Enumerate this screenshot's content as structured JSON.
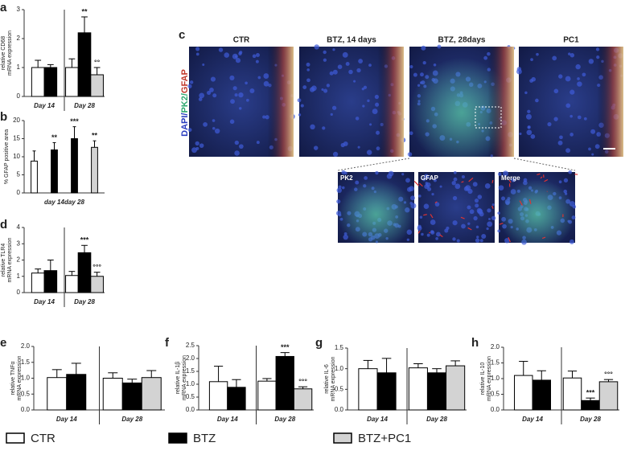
{
  "legend": [
    {
      "name": "CTR",
      "color": "#ffffff"
    },
    {
      "name": "BTZ",
      "color": "#000000"
    },
    {
      "name": "BTZ+PC1",
      "color": "#d3d3d3"
    }
  ],
  "panel_c": {
    "letter": "c",
    "stain_label": [
      "DAPI/",
      "PK2/",
      "GFAP"
    ],
    "columns": [
      "CTR",
      "BTZ, 14 days",
      "BTZ, 28days",
      "PC1"
    ],
    "zoom": [
      "PK2",
      "GFAP",
      "Merge"
    ]
  },
  "chart_data": [
    {
      "type": "bar",
      "panel": "a",
      "ylabel": [
        "relative CD68",
        "mRNA expression"
      ],
      "categories": [
        "Day 14",
        "Day 28"
      ],
      "group_divider": true,
      "ylim": [
        0,
        3
      ],
      "yticks": [
        0,
        1,
        2,
        3
      ],
      "series": [
        {
          "values": [
            1.0,
            1.0
          ],
          "errors": [
            0.25,
            0.3
          ],
          "labels": [
            null,
            null
          ]
        },
        {
          "values": [
            1.0,
            2.2
          ],
          "errors": [
            0.1,
            0.55
          ],
          "labels": [
            null,
            "**"
          ]
        },
        {
          "values": [
            null,
            0.75
          ],
          "errors": [
            null,
            0.25
          ],
          "labels": [
            null,
            "°°"
          ]
        }
      ]
    },
    {
      "type": "bar",
      "panel": "b",
      "ylabel": [
        "% GFAP positive area"
      ],
      "categories": [
        null,
        "day 14",
        "day 28",
        null
      ],
      "group_divider": false,
      "ylim": [
        0,
        20
      ],
      "yticks": [
        0,
        5,
        10,
        15,
        20
      ],
      "series": [
        {
          "values": [
            8.8,
            null,
            null,
            null
          ],
          "errors": [
            2.8,
            null,
            null,
            null
          ],
          "labels": [
            null,
            null,
            null,
            null
          ]
        },
        {
          "values": [
            null,
            11.9,
            15,
            null
          ],
          "errors": [
            null,
            2,
            3.3,
            null
          ],
          "labels": [
            null,
            "**",
            "***",
            null
          ]
        },
        {
          "values": [
            null,
            null,
            null,
            12.6
          ],
          "errors": [
            null,
            null,
            null,
            1.8
          ],
          "labels": [
            null,
            null,
            null,
            "**"
          ]
        }
      ]
    },
    {
      "type": "bar",
      "panel": "d",
      "ylabel": [
        "relative TLR4",
        "mRNA expression"
      ],
      "categories": [
        "Day 14",
        "Day 28"
      ],
      "group_divider": true,
      "ylim": [
        0,
        4
      ],
      "yticks": [
        0,
        1,
        2,
        3,
        4
      ],
      "series": [
        {
          "values": [
            1.2,
            1.05
          ],
          "errors": [
            0.25,
            0.25
          ],
          "labels": [
            null,
            null
          ]
        },
        {
          "values": [
            1.35,
            2.45
          ],
          "errors": [
            0.65,
            0.45
          ],
          "labels": [
            null,
            "***"
          ]
        },
        {
          "values": [
            null,
            1.0
          ],
          "errors": [
            null,
            0.25
          ],
          "labels": [
            null,
            "°°°"
          ]
        }
      ]
    },
    {
      "type": "bar",
      "panel": "e",
      "ylabel": [
        "relative TNFα",
        "mRNA expression"
      ],
      "categories": [
        "Day 14",
        "Day 28"
      ],
      "group_divider": true,
      "ylim": [
        0,
        2
      ],
      "yticks": [
        {
          "value": 0,
          "label": "0.0"
        },
        0.5,
        {
          "value": 1,
          "label": "1.0"
        },
        1.5,
        {
          "value": 2,
          "label": "2.0"
        }
      ],
      "series": [
        {
          "values": [
            1.02,
            1.0
          ],
          "errors": [
            0.25,
            0.17
          ],
          "labels": [
            null,
            null
          ]
        },
        {
          "values": [
            1.12,
            0.85
          ],
          "errors": [
            0.35,
            0.12
          ],
          "labels": [
            null,
            null
          ]
        },
        {
          "values": [
            null,
            1.02
          ],
          "errors": [
            null,
            0.22
          ],
          "labels": [
            null,
            null
          ]
        }
      ]
    },
    {
      "type": "bar",
      "panel": "f",
      "ylabel": [
        "relative IL-1β",
        "mRNA expression"
      ],
      "categories": [
        "Day 14",
        "Day 28"
      ],
      "group_divider": true,
      "ylim": [
        0,
        2.5
      ],
      "yticks": [
        {
          "value": 0,
          "label": "0.0"
        },
        0.5,
        {
          "value": 1,
          "label": "1.0"
        },
        1.5,
        {
          "value": 2,
          "label": "2.0"
        },
        2.5
      ],
      "series": [
        {
          "values": [
            1.1,
            1.12
          ],
          "errors": [
            0.6,
            0.1
          ],
          "labels": [
            null,
            null
          ]
        },
        {
          "values": [
            0.88,
            2.08
          ],
          "errors": [
            0.3,
            0.15
          ],
          "labels": [
            null,
            "***"
          ]
        },
        {
          "values": [
            null,
            0.82
          ],
          "errors": [
            null,
            0.08
          ],
          "labels": [
            null,
            "°°°"
          ]
        }
      ]
    },
    {
      "type": "bar",
      "panel": "g",
      "ylabel": [
        "relative IL-6",
        "mRNA expression"
      ],
      "categories": [
        "Day 14",
        "Day 28"
      ],
      "group_divider": true,
      "ylim": [
        0,
        1.5
      ],
      "yticks": [
        {
          "value": 0,
          "label": "0.0"
        },
        0.5,
        {
          "value": 1,
          "label": "1.0"
        },
        1.5
      ],
      "series": [
        {
          "values": [
            1.0,
            1.02
          ],
          "errors": [
            0.2,
            0.1
          ],
          "labels": [
            null,
            null
          ]
        },
        {
          "values": [
            0.9,
            0.9
          ],
          "errors": [
            0.35,
            0.1
          ],
          "labels": [
            null,
            null
          ]
        },
        {
          "values": [
            null,
            1.07
          ],
          "errors": [
            null,
            0.12
          ],
          "labels": [
            null,
            null
          ]
        }
      ]
    },
    {
      "type": "bar",
      "panel": "h",
      "ylabel": [
        "relative IL-10",
        "mRNA expression"
      ],
      "categories": [
        "Day 14",
        "Day 28"
      ],
      "group_divider": true,
      "ylim": [
        0,
        2
      ],
      "yticks": [
        {
          "value": 0,
          "label": "0.0"
        },
        0.5,
        {
          "value": 1,
          "label": "1.0"
        },
        1.5,
        {
          "value": 2,
          "label": "2.0"
        }
      ],
      "series": [
        {
          "values": [
            1.1,
            1.02
          ],
          "errors": [
            0.45,
            0.22
          ],
          "labels": [
            null,
            null
          ]
        },
        {
          "values": [
            0.95,
            0.3
          ],
          "errors": [
            0.3,
            0.08
          ],
          "labels": [
            null,
            "***"
          ]
        },
        {
          "values": [
            null,
            0.9
          ],
          "errors": [
            null,
            0.07
          ],
          "labels": [
            null,
            "°°°"
          ]
        }
      ]
    }
  ]
}
